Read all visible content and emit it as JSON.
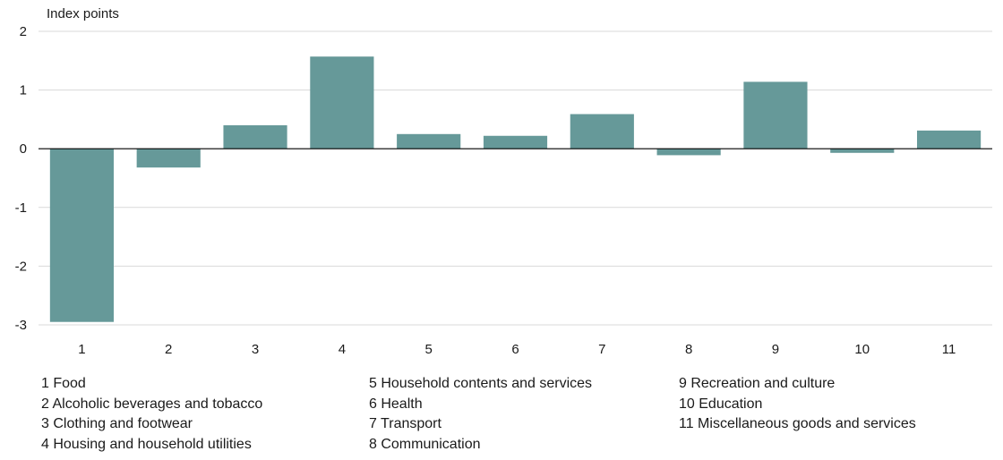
{
  "colors": {
    "bar": "#669999",
    "grid": "#d9d9d9",
    "axis": "#000000"
  },
  "chart_data": {
    "type": "bar",
    "ylabel": "Index points",
    "ylim": [
      -3,
      2
    ],
    "yticks": [
      2,
      1,
      0,
      -1,
      -2,
      -3
    ],
    "grid": true,
    "categories": [
      "1",
      "2",
      "3",
      "4",
      "5",
      "6",
      "7",
      "8",
      "9",
      "10",
      "11"
    ],
    "values": [
      -2.95,
      -0.32,
      0.4,
      1.57,
      0.25,
      0.22,
      0.59,
      -0.11,
      1.14,
      -0.07,
      0.31
    ]
  },
  "legend": {
    "col1": [
      "1 Food",
      "2 Alcoholic beverages and tobacco",
      "3 Clothing and footwear",
      "4 Housing and household utilities"
    ],
    "col2": [
      "5 Household contents and services",
      "6 Health",
      "7 Transport",
      "8 Communication"
    ],
    "col3": [
      "9 Recreation and culture",
      "10 Education",
      "11 Miscellaneous goods and services"
    ]
  }
}
